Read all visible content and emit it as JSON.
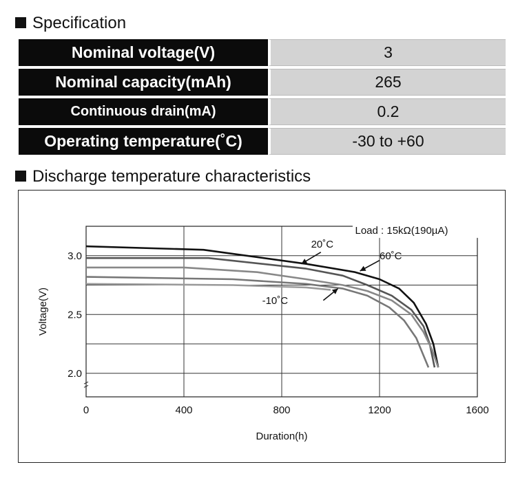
{
  "spec": {
    "title": "Specification",
    "rows": [
      {
        "label": "Nominal voltage(V)",
        "value": "3"
      },
      {
        "label": "Nominal capacity(mAh)",
        "value": "265"
      },
      {
        "label": "Continuous drain(mA)",
        "value": "0.2"
      },
      {
        "label": "Operating temperature(˚C)",
        "value": "-30 to +60"
      }
    ]
  },
  "chart_title": "Discharge temperature characteristics",
  "chart_data": {
    "type": "line",
    "xlabel": "Duration(h)",
    "ylabel": "Voltage(V)",
    "xlim": [
      0,
      1600
    ],
    "ylim": [
      1.8,
      3.25
    ],
    "x_ticks": [
      "0",
      "400",
      "800",
      "1200",
      "1600"
    ],
    "y_ticks": [
      "2.0",
      "2.5",
      "3.0"
    ],
    "grid": true,
    "annotation": "Load : 15kΩ(190µA)",
    "series": [
      {
        "name": "20˚C",
        "color": "#111111",
        "points": [
          [
            0,
            3.08
          ],
          [
            480,
            3.05
          ],
          [
            900,
            2.93
          ],
          [
            1100,
            2.86
          ],
          [
            1200,
            2.8
          ],
          [
            1280,
            2.72
          ],
          [
            1340,
            2.6
          ],
          [
            1390,
            2.42
          ],
          [
            1420,
            2.25
          ],
          [
            1440,
            2.05
          ]
        ]
      },
      {
        "name": "60˚C",
        "color": "#555555",
        "points": [
          [
            0,
            2.98
          ],
          [
            500,
            2.98
          ],
          [
            900,
            2.89
          ],
          [
            1050,
            2.83
          ],
          [
            1150,
            2.75
          ],
          [
            1250,
            2.66
          ],
          [
            1330,
            2.54
          ],
          [
            1380,
            2.4
          ],
          [
            1405,
            2.25
          ],
          [
            1425,
            2.05
          ]
        ]
      },
      {
        "name": "-10˚C",
        "color": "#777777",
        "points": [
          [
            0,
            2.82
          ],
          [
            600,
            2.8
          ],
          [
            900,
            2.76
          ],
          [
            1050,
            2.72
          ],
          [
            1150,
            2.66
          ],
          [
            1240,
            2.56
          ],
          [
            1300,
            2.45
          ],
          [
            1350,
            2.3
          ],
          [
            1380,
            2.15
          ],
          [
            1400,
            2.05
          ]
        ]
      },
      {
        "name": "",
        "color": "#888888",
        "points": [
          [
            0,
            2.9
          ],
          [
            400,
            2.9
          ],
          [
            700,
            2.86
          ],
          [
            900,
            2.8
          ],
          [
            1050,
            2.75
          ],
          [
            1150,
            2.7
          ],
          [
            1250,
            2.62
          ],
          [
            1330,
            2.5
          ],
          [
            1380,
            2.35
          ],
          [
            1415,
            2.2
          ],
          [
            1440,
            2.05
          ]
        ]
      },
      {
        "name": "",
        "color": "#9a9a9a",
        "points": [
          [
            0,
            2.76
          ],
          [
            600,
            2.75
          ],
          [
            900,
            2.73
          ],
          [
            1000,
            2.71
          ]
        ]
      }
    ],
    "labels": [
      {
        "text": "20˚C",
        "x": 920,
        "y": 3.07
      },
      {
        "text": "60˚C",
        "x": 1200,
        "y": 2.97
      },
      {
        "text": "-10˚C",
        "x": 720,
        "y": 2.59
      }
    ]
  }
}
